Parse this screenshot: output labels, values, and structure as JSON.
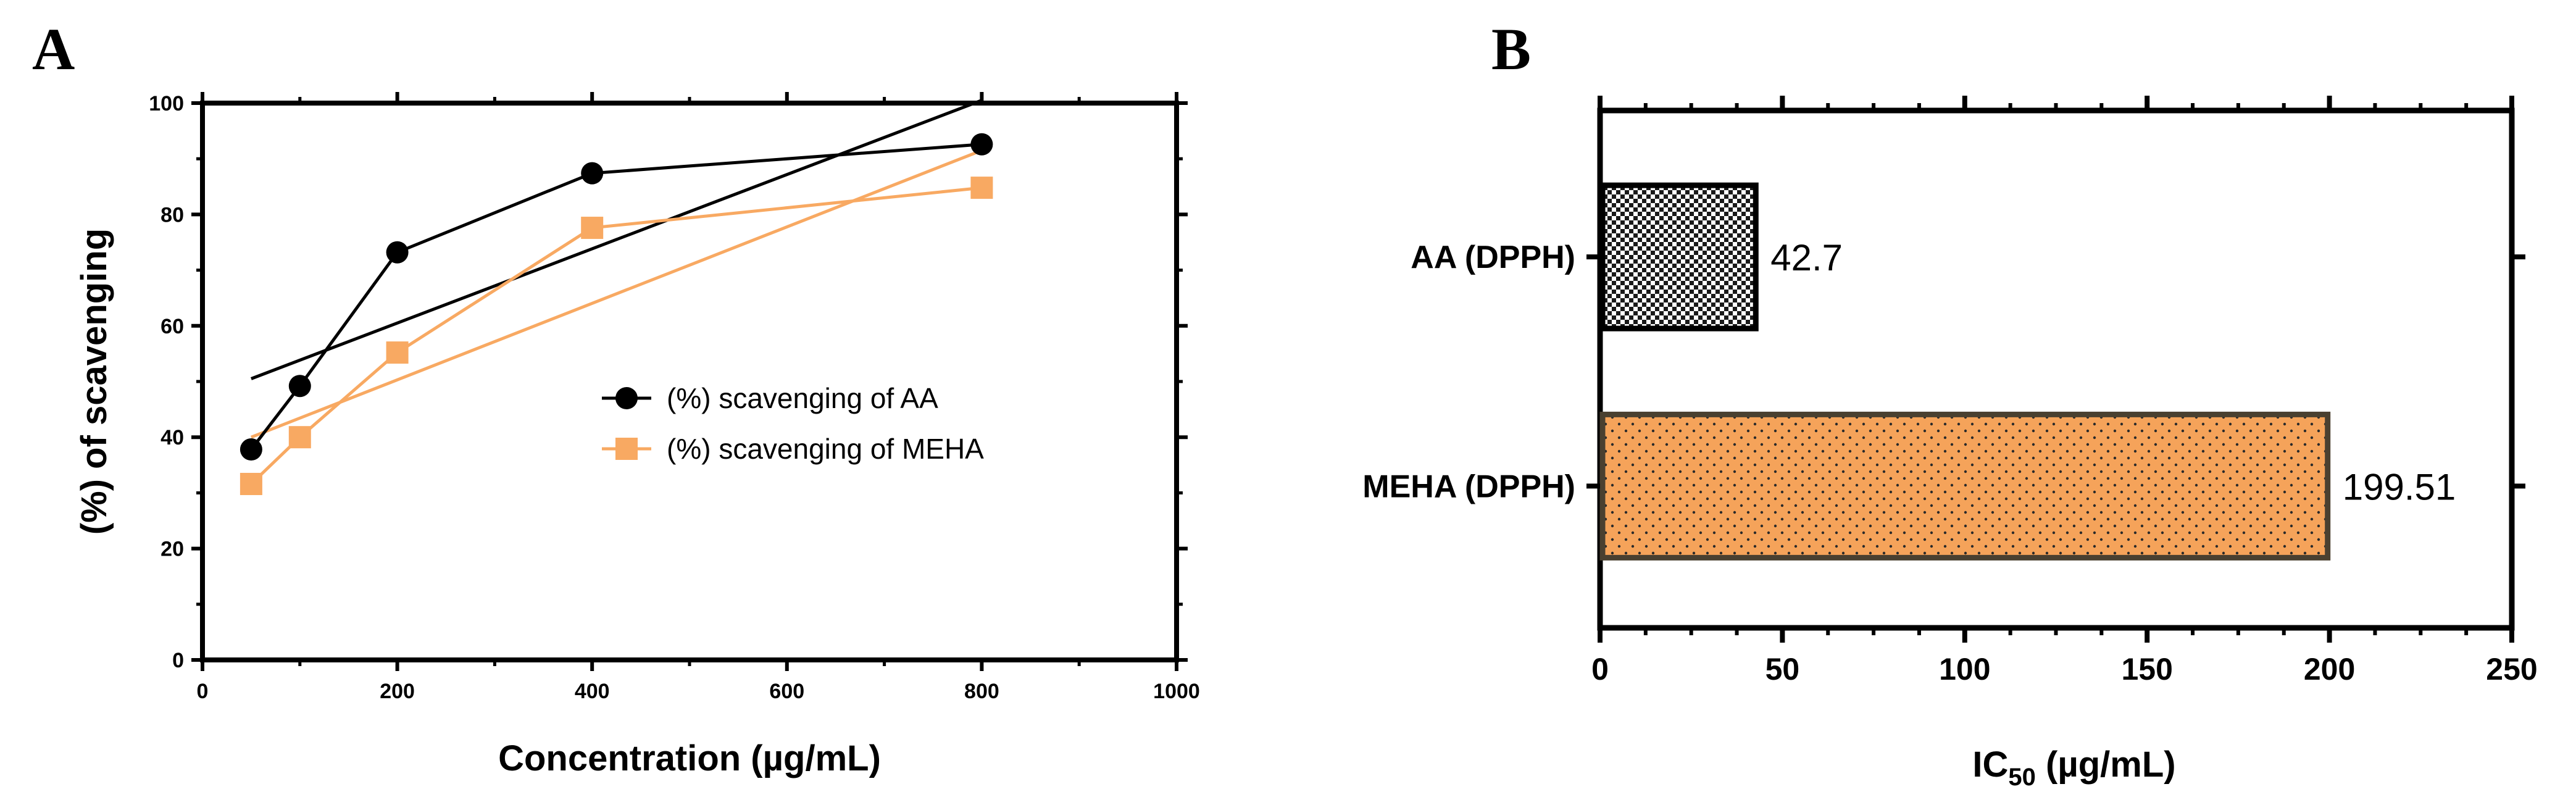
{
  "colors": {
    "aa": "#000000",
    "meha": "#F8A962",
    "meha_bar_fill": "#F5A35A",
    "meha_bar_border": "#4A4030",
    "aa_bar_fill": "#e8e8e8"
  },
  "chart_data": [
    {
      "panel": "A",
      "type": "line",
      "xlabel": "Concentration (µg/mL)",
      "ylabel": "(%) of scavenging",
      "xlim": [
        0,
        1000
      ],
      "ylim": [
        0,
        100
      ],
      "xticks": [
        "0",
        "200",
        "400",
        "600",
        "800",
        "1000"
      ],
      "yticks": [
        "0",
        "20",
        "40",
        "60",
        "80",
        "100"
      ],
      "legend_position": "center-right",
      "series": [
        {
          "name": "(%) scavenging of AA",
          "marker": "circle",
          "x": [
            50,
            100,
            200,
            400,
            800
          ],
          "y": [
            37.8,
            49.2,
            73.2,
            87.4,
            92.6
          ],
          "trendline": {
            "x": [
              50,
              800
            ],
            "y": [
              50.5,
              100.5
            ]
          }
        },
        {
          "name": "(%) scavenging of MEHA",
          "marker": "square",
          "x": [
            50,
            100,
            200,
            400,
            800
          ],
          "y": [
            31.6,
            40.0,
            55.2,
            77.6,
            84.8
          ],
          "trendline": {
            "x": [
              50,
              800
            ],
            "y": [
              40.0,
              91.5
            ]
          }
        }
      ]
    },
    {
      "panel": "B",
      "type": "bar",
      "orientation": "horizontal",
      "xlabel_main": "IC",
      "xlabel_sub": "50",
      "xlabel_rest": " (µg/mL)",
      "xlim": [
        0,
        250
      ],
      "xticks": [
        "0",
        "50",
        "100",
        "150",
        "200",
        "250"
      ],
      "categories": [
        "AA (DPPH)",
        "MEHA (DPPH)"
      ],
      "values": [
        42.7,
        199.51
      ],
      "value_labels": [
        "42.7",
        "199.51"
      ]
    }
  ]
}
